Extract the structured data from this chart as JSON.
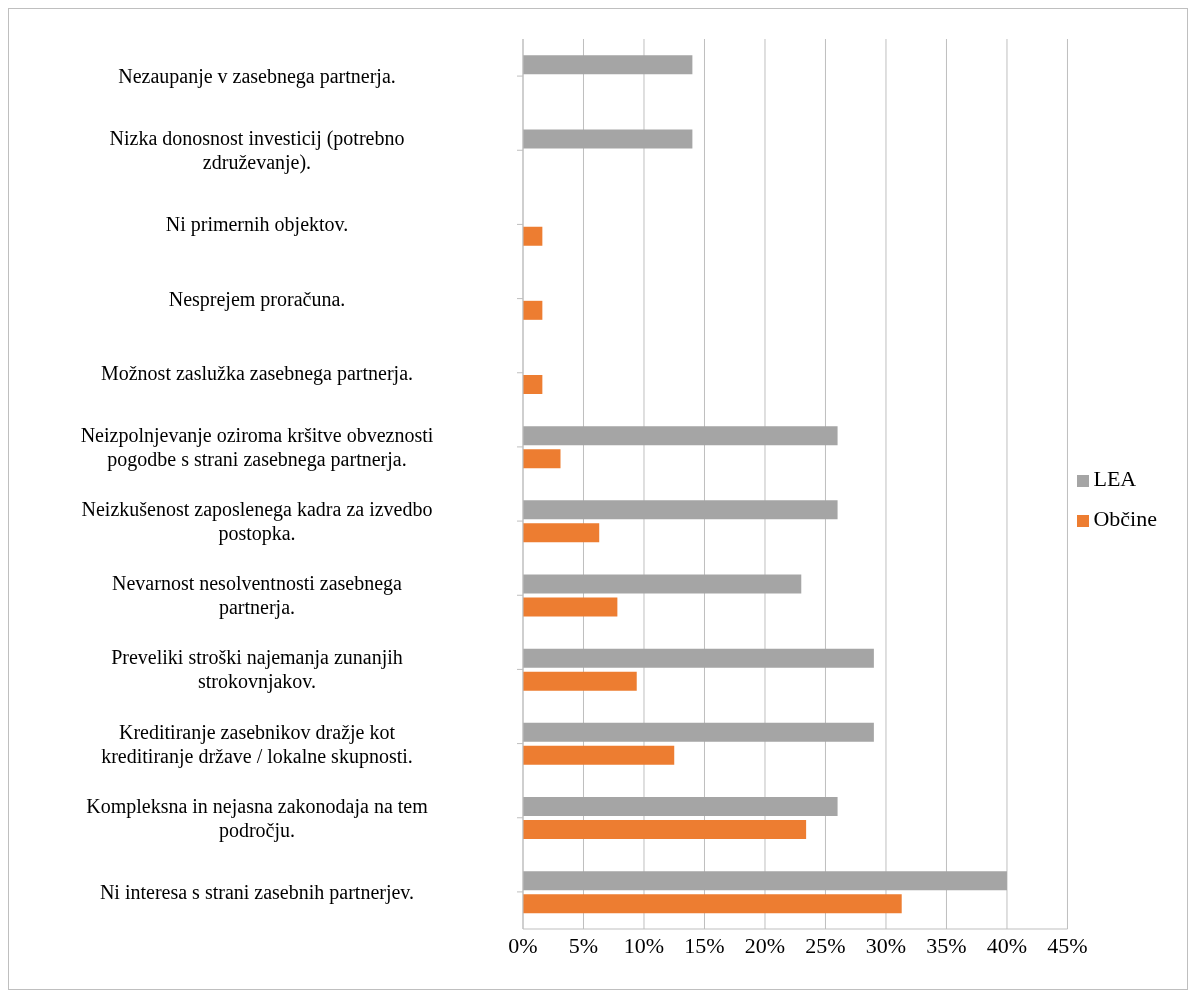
{
  "chart_data": {
    "type": "bar",
    "orientation": "horizontal",
    "categories": [
      "Nezaupanje v zasebnega partnerja.",
      "Nizka donosnost investicij (potrebno združevanje).",
      "Ni primernih objektov.",
      "Nesprejem proračuna.",
      "Možnost zaslužka zasebnega partnerja.",
      "Neizpolnjevanje oziroma kršitve obveznosti pogodbe s strani zasebnega  partnerja.",
      "Neizkušenost zaposlenega kadra za izvedbo postopka.",
      "Nevarnost nesolventnosti zasebnega partnerja.",
      "Preveliki stroški najemanja zunanjih strokovnjakov.",
      "Kreditiranje zasebnikov dražje kot kreditiranje države / lokalne skupnosti.",
      "Kompleksna in nejasna zakonodaja na tem področju.",
      "Ni interesa s strani zasebnih partnerjev."
    ],
    "series": [
      {
        "name": "LEA",
        "color": "#a5a5a5",
        "values": [
          14,
          14,
          null,
          null,
          null,
          26,
          26,
          23,
          29,
          29,
          26,
          40
        ]
      },
      {
        "name": "Občine",
        "color": "#ed7d31",
        "values": [
          null,
          null,
          1.6,
          1.6,
          1.6,
          3.1,
          6.3,
          7.8,
          9.4,
          12.5,
          23.4,
          31.3
        ]
      }
    ],
    "xlim": [
      0,
      45
    ],
    "xticks": [
      {
        "value": 0,
        "label": "0%"
      },
      {
        "value": 5,
        "label": "5%"
      },
      {
        "value": 10,
        "label": "10%"
      },
      {
        "value": 15,
        "label": "15%"
      },
      {
        "value": 20,
        "label": "20%"
      },
      {
        "value": 25,
        "label": "25%"
      },
      {
        "value": 30,
        "label": "30%"
      },
      {
        "value": 35,
        "label": "35%"
      },
      {
        "value": 40,
        "label": "40%"
      },
      {
        "value": 45,
        "label": "45%"
      }
    ],
    "grid": "x",
    "legend": "right"
  }
}
